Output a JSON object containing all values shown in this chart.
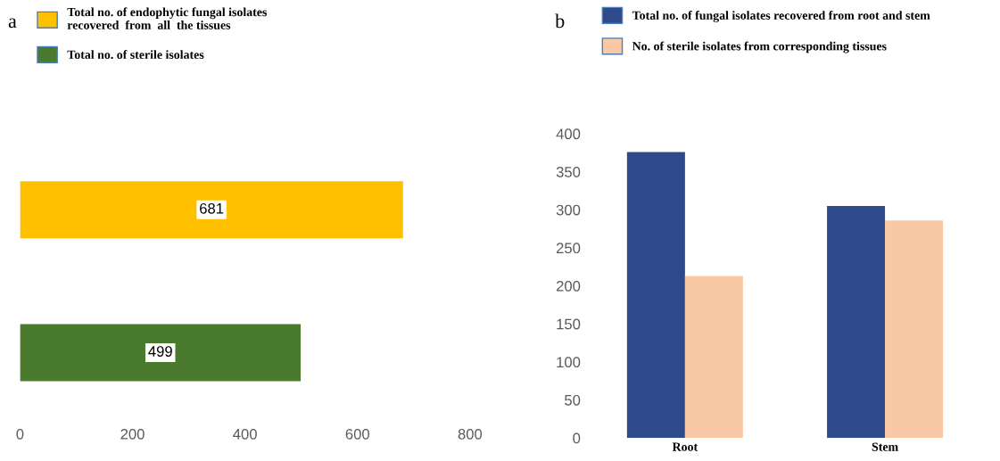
{
  "chart_data": [
    {
      "type": "bar",
      "orientation": "horizontal",
      "stacked": true,
      "annotations": [
        "a"
      ],
      "categories": [
        null,
        null
      ],
      "data_labels": true,
      "xlim": [
        0,
        800
      ],
      "xticks": [
        0,
        200,
        400,
        600,
        800
      ],
      "grid": false,
      "legend": "top left",
      "series": [
        {
          "name": "Total no. of endophytic fungal isolates\nrecovered  from  all  the tissues",
          "color": "#ffc000",
          "values": [
            681,
            null
          ]
        },
        {
          "name": "Total no. of sterile isolates",
          "color": "#4a7a2e",
          "values": [
            null,
            499
          ]
        }
      ]
    },
    {
      "type": "bar",
      "annotations": [
        "b"
      ],
      "categories": [
        "Root",
        "Stem"
      ],
      "ylim": [
        0,
        400
      ],
      "yticks": [
        0,
        50,
        100,
        150,
        200,
        250,
        300,
        350,
        400
      ],
      "grid": false,
      "legend": "top left",
      "series": [
        {
          "name": "Total no. of fungal isolates recovered from root and stem",
          "color": "#2e4a8c",
          "values": [
            376,
            305
          ]
        },
        {
          "name": "No. of sterile isolates from corresponding tissues",
          "color": "#f9c9a6",
          "values": [
            213,
            286
          ]
        }
      ]
    }
  ]
}
